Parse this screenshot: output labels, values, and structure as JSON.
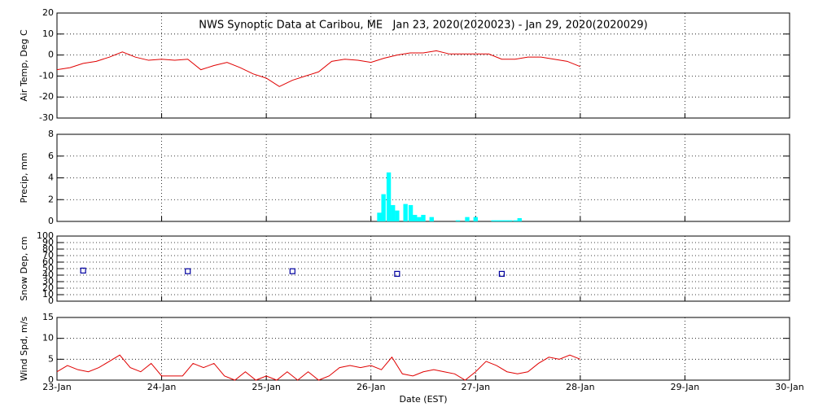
{
  "chart_data": [
    {
      "type": "line",
      "title": "NWS Synoptic Data at Caribou, ME   Jan 23, 2020(2020023) - Jan 29, 2020(2020029)",
      "y_label": "Air Temp, Deg C",
      "xlim": [
        0,
        7
      ],
      "xticks": [
        0,
        1,
        2,
        3,
        4,
        5,
        6,
        7
      ],
      "ylim": [
        -30,
        20
      ],
      "yticks": [
        -30,
        -20,
        -10,
        0,
        10,
        20
      ],
      "grid": true,
      "series": [
        {
          "color": "#e00000",
          "x": [
            0,
            0.125,
            0.25,
            0.375,
            0.5,
            0.625,
            0.75,
            0.875,
            1.0,
            1.125,
            1.25,
            1.375,
            1.5,
            1.625,
            1.75,
            1.875,
            2.0,
            2.125,
            2.25,
            2.375,
            2.5,
            2.625,
            2.75,
            2.875,
            3.0,
            3.125,
            3.25,
            3.375,
            3.5,
            3.625,
            3.75,
            3.875,
            4.0,
            4.125,
            4.25,
            4.375,
            4.5,
            4.625,
            4.75,
            4.875,
            5.0
          ],
          "values": [
            -7,
            -6,
            -4,
            -3,
            -1,
            1.5,
            -1,
            -2.5,
            -2,
            -2.5,
            -2,
            -7,
            -5,
            -3.5,
            -6,
            -9,
            -11,
            -15,
            -12,
            -10,
            -8,
            -3,
            -2,
            -2.5,
            -3.5,
            -1.5,
            0,
            1,
            1,
            2,
            0.5,
            0.5,
            0.5,
            0.5,
            -2,
            -2,
            -1,
            -1,
            -2,
            -3,
            -5.5
          ]
        }
      ]
    },
    {
      "type": "bar",
      "y_label": "Precip, mm",
      "xlim": [
        0,
        7
      ],
      "xticks": [
        0,
        1,
        2,
        3,
        4,
        5,
        6,
        7
      ],
      "ylim": [
        0,
        8
      ],
      "yticks": [
        0,
        2,
        4,
        6,
        8
      ],
      "grid": true,
      "series": [
        {
          "color": "#00ffff",
          "x": [
            3.08,
            3.12,
            3.17,
            3.21,
            3.25,
            3.33,
            3.38,
            3.42,
            3.46,
            3.5,
            3.58,
            3.83,
            3.92,
            4.0,
            4.17,
            4.21,
            4.25,
            4.29,
            4.33,
            4.38,
            4.42
          ],
          "values": [
            0.8,
            2.5,
            4.5,
            1.5,
            1.0,
            1.6,
            1.5,
            0.6,
            0.4,
            0.6,
            0.4,
            0.1,
            0.4,
            0.4,
            0.1,
            0.1,
            0.1,
            0.1,
            0.1,
            0.1,
            0.3
          ]
        }
      ]
    },
    {
      "type": "scatter",
      "y_label": "Snow Dep, cm",
      "xlim": [
        0,
        7
      ],
      "xticks": [
        0,
        1,
        2,
        3,
        4,
        5,
        6,
        7
      ],
      "ylim": [
        0,
        100
      ],
      "yticks": [
        0,
        10,
        20,
        30,
        40,
        50,
        60,
        70,
        80,
        90,
        100
      ],
      "grid": true,
      "series": [
        {
          "color": "#0000a0",
          "x": [
            0.25,
            1.25,
            2.25,
            3.25,
            4.25
          ],
          "values": [
            47,
            46,
            46,
            42,
            42
          ]
        }
      ]
    },
    {
      "type": "line",
      "y_label": "Wind Spd, m/s",
      "x_label": "Date (EST)",
      "xlim": [
        0,
        7
      ],
      "xticks": [
        {
          "value": 0,
          "label": "23-Jan"
        },
        {
          "value": 1,
          "label": "24-Jan"
        },
        {
          "value": 2,
          "label": "25-Jan"
        },
        {
          "value": 3,
          "label": "26-Jan"
        },
        {
          "value": 4,
          "label": "27-Jan"
        },
        {
          "value": 5,
          "label": "28-Jan"
        },
        {
          "value": 6,
          "label": "29-Jan"
        },
        {
          "value": 7,
          "label": "30-Jan"
        }
      ],
      "ylim": [
        0,
        15
      ],
      "yticks": [
        0,
        5,
        10,
        15
      ],
      "grid": true,
      "series": [
        {
          "color": "#e00000",
          "x": [
            0,
            0.1,
            0.2,
            0.3,
            0.4,
            0.5,
            0.6,
            0.7,
            0.8,
            0.9,
            1.0,
            1.1,
            1.2,
            1.3,
            1.4,
            1.5,
            1.6,
            1.7,
            1.8,
            1.9,
            2.0,
            2.1,
            2.2,
            2.3,
            2.4,
            2.5,
            2.6,
            2.7,
            2.8,
            2.9,
            3.0,
            3.1,
            3.2,
            3.3,
            3.4,
            3.5,
            3.6,
            3.7,
            3.8,
            3.9,
            4.0,
            4.1,
            4.2,
            4.3,
            4.4,
            4.5,
            4.6,
            4.7,
            4.8,
            4.9,
            5.0
          ],
          "values": [
            2,
            3.5,
            2.5,
            2,
            3,
            4.5,
            6,
            3,
            2,
            4,
            1,
            1,
            1,
            4,
            3,
            4,
            1,
            0,
            2,
            0,
            1,
            0,
            2,
            0,
            2,
            0,
            1,
            3,
            3.5,
            3,
            3.5,
            2.5,
            5.5,
            1.5,
            1,
            2,
            2.5,
            2,
            1.5,
            0,
            2,
            4.5,
            3.5,
            2,
            1.5,
            2,
            4,
            5.5,
            5,
            6,
            5
          ]
        }
      ]
    }
  ]
}
